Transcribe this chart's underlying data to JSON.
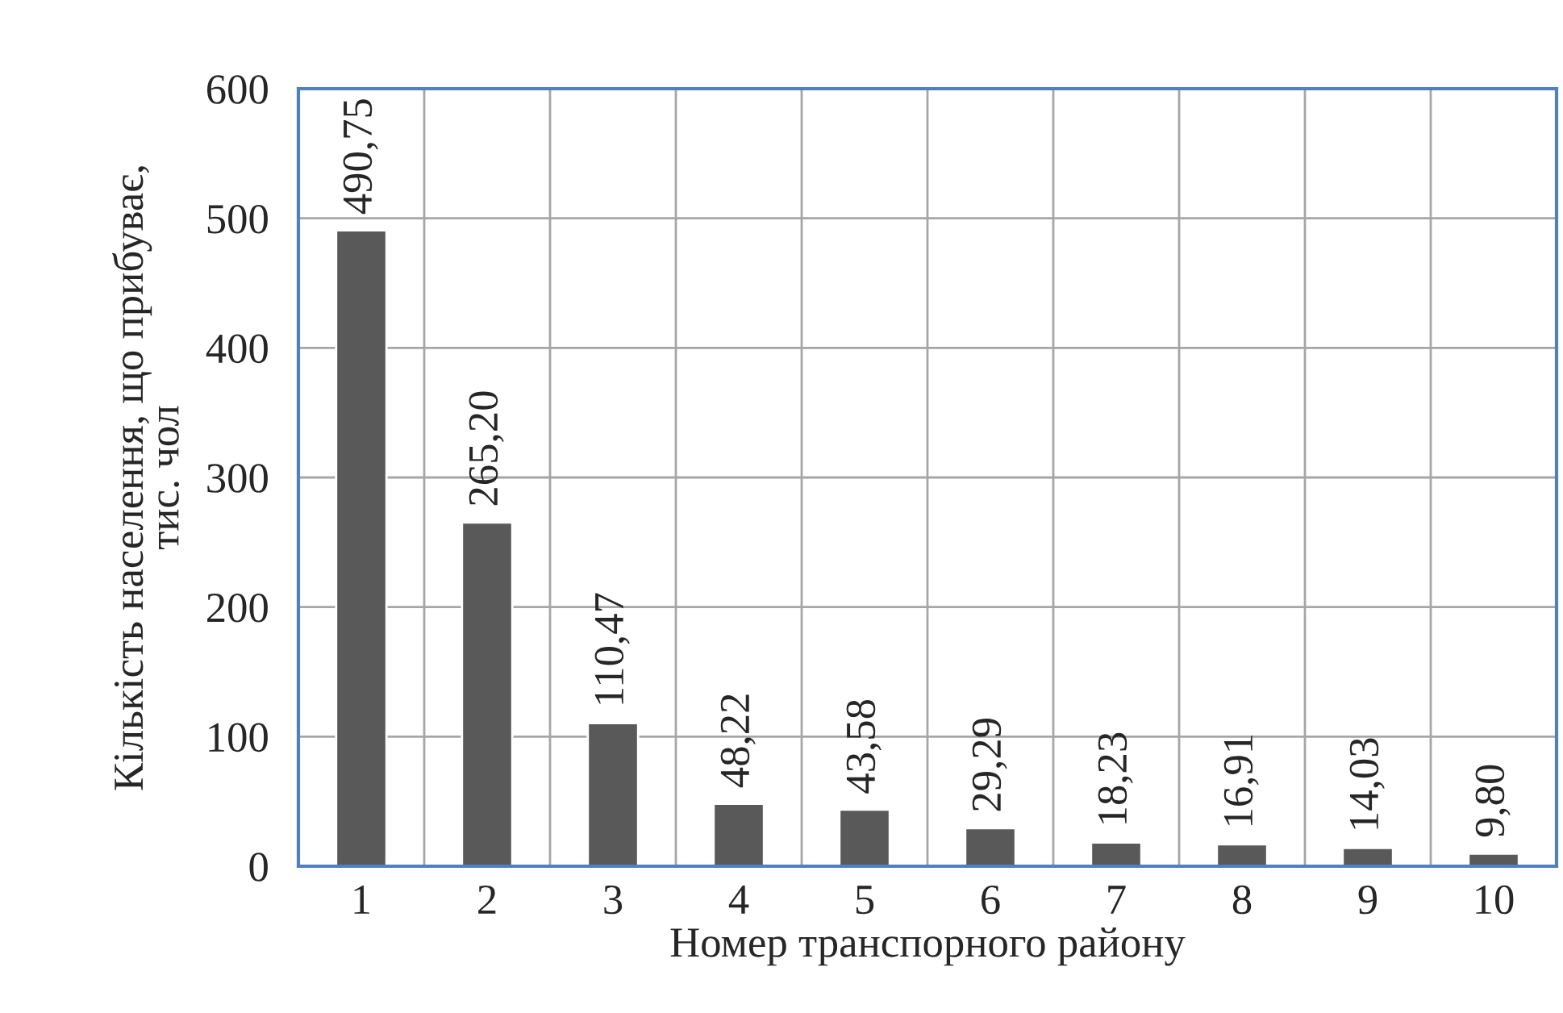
{
  "chart_data": {
    "type": "bar",
    "xlabel": "Номер транспорного району",
    "ylabel": "Кількість населення, що прибуває,\nтис. чол",
    "categories": [
      "1",
      "2",
      "3",
      "4",
      "5",
      "6",
      "7",
      "8",
      "9",
      "10"
    ],
    "values": [
      490.75,
      265.2,
      110.47,
      48.22,
      43.58,
      29.29,
      18.23,
      16.91,
      14.03,
      9.8
    ],
    "value_labels": [
      "490,75",
      "265,20",
      "110,47",
      "48,22",
      "43,58",
      "29,29",
      "18,23",
      "16,91",
      "14,03",
      "9,80"
    ],
    "color": "#595959",
    "ylim": [
      0,
      600
    ],
    "yticks": [
      0,
      100,
      200,
      300,
      400,
      500,
      600
    ],
    "grid": true
  }
}
